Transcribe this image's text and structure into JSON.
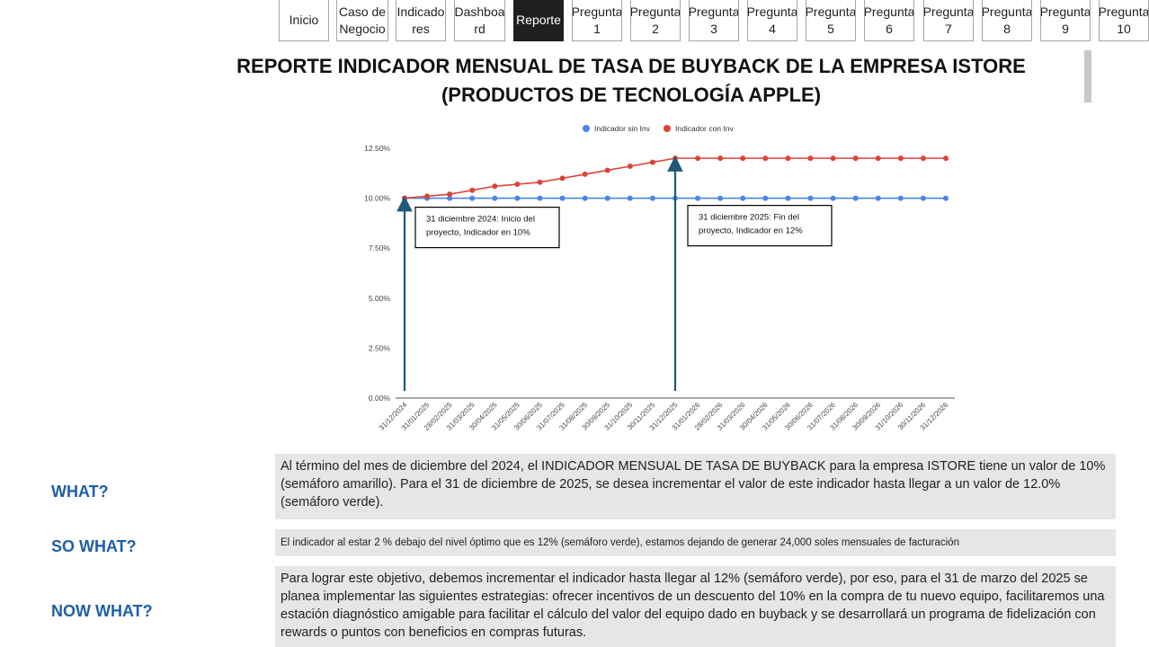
{
  "nav": {
    "tabs": [
      {
        "label": "Inicio",
        "active": false
      },
      {
        "label": "Caso de\nNegocio",
        "active": false
      },
      {
        "label": "Indicado\nres",
        "active": false
      },
      {
        "label": "Dashboa\nrd",
        "active": false
      },
      {
        "label": "Reporte",
        "active": true
      },
      {
        "label": "Pregunta\n1",
        "active": false
      },
      {
        "label": "Pregunta\n2",
        "active": false
      },
      {
        "label": "Pregunta\n3",
        "active": false
      },
      {
        "label": "Pregunta\n4",
        "active": false
      },
      {
        "label": "Pregunta\n5",
        "active": false
      },
      {
        "label": "Pregunta\n6",
        "active": false
      },
      {
        "label": "Pregunta\n7",
        "active": false
      },
      {
        "label": "Pregunta\n8",
        "active": false
      },
      {
        "label": "Pregunta\n9",
        "active": false
      },
      {
        "label": "Pregunta\n10",
        "active": false
      }
    ]
  },
  "report": {
    "title_line1": "REPORTE INDICADOR MENSUAL DE TASA DE BUYBACK DE LA EMPRESA ISTORE",
    "title_line2": "(PRODUCTOS DE TECNOLOGÍA APPLE)"
  },
  "chart_data": {
    "type": "line",
    "x": [
      "31/12/2024",
      "31/01/2025",
      "28/02/2025",
      "31/03/2025",
      "30/04/2025",
      "31/05/2025",
      "30/06/2025",
      "31/07/2025",
      "31/08/2025",
      "30/09/2025",
      "31/10/2025",
      "30/11/2025",
      "31/12/2025",
      "31/01/2026",
      "28/02/2026",
      "31/03/2026",
      "30/04/2026",
      "31/05/2026",
      "30/06/2026",
      "31/07/2026",
      "31/08/2026",
      "30/09/2026",
      "31/10/2026",
      "30/11/2026",
      "31/12/2026"
    ],
    "series": [
      {
        "name": "Indicador sin Inv",
        "color": "#4a86e8",
        "values": [
          10.0,
          10.0,
          10.0,
          10.0,
          10.0,
          10.0,
          10.0,
          10.0,
          10.0,
          10.0,
          10.0,
          10.0,
          10.0,
          10.0,
          10.0,
          10.0,
          10.0,
          10.0,
          10.0,
          10.0,
          10.0,
          10.0,
          10.0,
          10.0,
          10.0
        ]
      },
      {
        "name": "Indicador con Inv",
        "color": "#db4437",
        "values": [
          10.0,
          10.1,
          10.2,
          10.4,
          10.6,
          10.7,
          10.8,
          11.0,
          11.2,
          11.4,
          11.6,
          11.8,
          12.0,
          12.0,
          12.0,
          12.0,
          12.0,
          12.0,
          12.0,
          12.0,
          12.0,
          12.0,
          12.0,
          12.0,
          12.0
        ]
      }
    ],
    "yticks": [
      "0.00%",
      "2.50%",
      "5.00%",
      "7.50%",
      "10.00%",
      "12.50%"
    ],
    "ylim": [
      0,
      12.5
    ],
    "legend_position": "top-center",
    "grid": false,
    "annotations": [
      {
        "x_index": 0,
        "line1": "31 diciembre 2024: Inicio del",
        "line2": "proyecto, Indicador en 10%"
      },
      {
        "x_index": 12,
        "line1": "31 diciembre 2025: Fin del",
        "line2": "proyecto, Indicador en 12%"
      }
    ],
    "arrow_color": "#1f5a78"
  },
  "analysis": {
    "what_label": "WHAT?",
    "what_text": "Al término del mes de diciembre del 2024, el INDICADOR MENSUAL DE TASA DE BUYBACK para la empresa ISTORE tiene un valor de 10% (semáforo amarillo). Para el 31 de diciembre de 2025, se desea incrementar el valor de este indicador hasta llegar a un valor de 12.0% (semáforo verde).",
    "so_what_label": "SO WHAT?",
    "so_what_text": "El indicador al estar 2 % debajo del nivel óptimo que es 12% (semáforo verde), estamos dejando de generar 24,000 soles mensuales de facturación",
    "now_what_label": "NOW WHAT?",
    "now_what_text": "Para lograr este objetivo, debemos incrementar el indicador hasta llegar al 12% (semáforo verde), por eso, para el 31 de marzo del 2025 se planea implementar las siguientes estrategias: ofrecer incentivos de un descuento del 10% en la compra de tu nuevo equipo, facilitaremos una estación diagnóstico amigable para facilitar el cálculo del valor del equipo dado en buyback y se desarrollará un programa de fidelización con rewards o puntos con beneficios en compras futuras."
  }
}
